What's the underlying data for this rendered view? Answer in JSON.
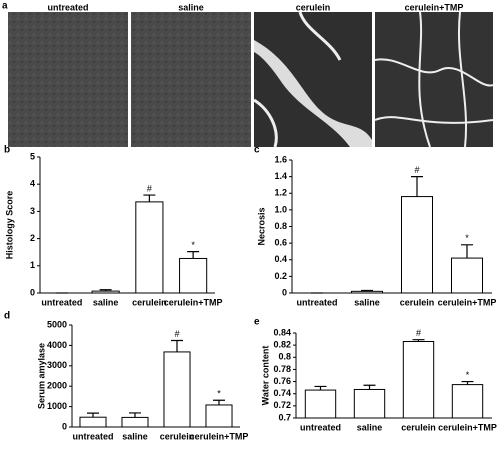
{
  "panel_a": {
    "panel": "a",
    "captions": [
      "untreated",
      "saline",
      "cerulein",
      "cerulein+TMP"
    ]
  },
  "chart_data": [
    {
      "type": "bar",
      "panel": "b",
      "ylabel": "Histology Score",
      "categories": [
        "untreated",
        "saline",
        "cerulein",
        "cerulein+TMP"
      ],
      "values": [
        0,
        0.07,
        3.35,
        1.27
      ],
      "errors": [
        0,
        0.05,
        0.25,
        0.25
      ],
      "markers": [
        null,
        null,
        "#",
        "*"
      ],
      "color": "#ffffff",
      "ylim": [
        0,
        5
      ],
      "yticks": [
        0,
        1,
        2,
        3,
        4,
        5
      ]
    },
    {
      "type": "bar",
      "panel": "c",
      "ylabel": "Necrosis",
      "categories": [
        "untreated",
        "saline",
        "cerulein",
        "cerulein+TMP"
      ],
      "values": [
        0,
        0.02,
        1.16,
        0.42
      ],
      "errors": [
        0,
        0.01,
        0.24,
        0.16
      ],
      "markers": [
        null,
        null,
        "#",
        "*"
      ],
      "color": "#ffffff",
      "ylim": [
        0,
        1.6
      ],
      "yticks": [
        0,
        0.2,
        0.4,
        0.6,
        0.8,
        {
          "value": 1,
          "label": "1.0"
        },
        1.2,
        1.4,
        1.6
      ]
    },
    {
      "type": "bar",
      "panel": "d",
      "ylabel": "Serum amylase",
      "categories": [
        "untreated",
        "saline",
        "cerulein",
        "cerulein+TMP"
      ],
      "values": [
        480,
        470,
        3680,
        1080
      ],
      "errors": [
        200,
        220,
        560,
        230
      ],
      "markers": [
        null,
        null,
        "#",
        "*"
      ],
      "color": "#ffffff",
      "ylim": [
        0,
        5000
      ],
      "yticks": [
        0,
        1000,
        2000,
        3000,
        4000,
        5000
      ]
    },
    {
      "type": "bar",
      "panel": "e",
      "ylabel": "Water content",
      "categories": [
        "untreated",
        "saline",
        "cerulein",
        "cerulein+TMP"
      ],
      "values": [
        0.746,
        0.747,
        0.826,
        0.755
      ],
      "errors": [
        0.006,
        0.007,
        0.003,
        0.005
      ],
      "markers": [
        null,
        null,
        "#",
        "*"
      ],
      "color": "#ffffff",
      "ylim": [
        0.7,
        0.84
      ],
      "yticks": [
        0.7,
        0.72,
        0.74,
        0.76,
        0.78,
        0.8,
        0.82,
        0.84
      ]
    }
  ]
}
